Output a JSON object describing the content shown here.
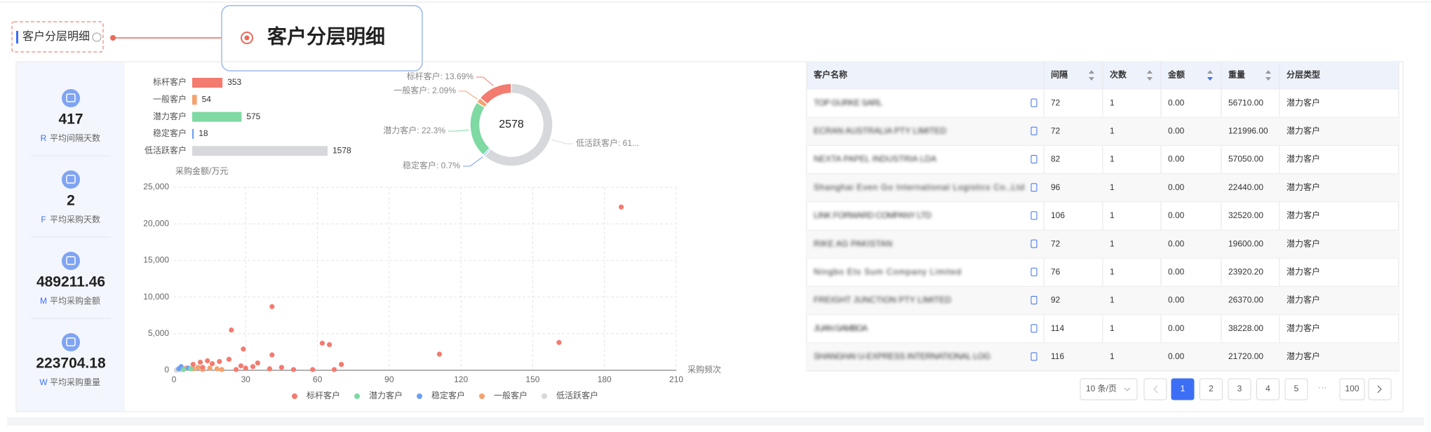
{
  "header": {
    "title": "客户分层明细",
    "callout": "客户分层明细"
  },
  "kpis": [
    {
      "value": 417,
      "letter": "R",
      "label": "平均间隔天数"
    },
    {
      "value": 2,
      "letter": "F",
      "label": "平均采购天数"
    },
    {
      "value": 489211.46,
      "letter": "M",
      "label": "平均采购金额"
    },
    {
      "value": 223704.18,
      "letter": "W",
      "label": "平均采购重量"
    }
  ],
  "bar_chart": {
    "type": "bar",
    "categories": [
      "标杆客户",
      "一般客户",
      "潜力客户",
      "稳定客户",
      "低活跃客户"
    ],
    "values": [
      353,
      54,
      575,
      18,
      1578
    ],
    "colors": [
      "#f37b6f",
      "#f4a26f",
      "#7ed9a3",
      "#6f9ff5",
      "#d6d8db"
    ]
  },
  "donut_chart": {
    "type": "pie",
    "total": 2578,
    "values": [
      13.69,
      2.09,
      22.3,
      0.7,
      61.21
    ],
    "value_labels": [
      "标杆客户: 13.69%",
      "一般客户: 2.09%",
      "潜力客户: 22.3%",
      "稳定客户: 0.7%",
      "低活跃客户: 61..."
    ],
    "colors": [
      "#f37b6f",
      "#f4a26f",
      "#7ed9a3",
      "#6f9ff5",
      "#d6d8db"
    ]
  },
  "scatter_chart": {
    "type": "scatter",
    "y_label": "采购金额/万元",
    "x_label": "采购频次",
    "xlim": [
      0,
      210
    ],
    "xticks": [
      0,
      30,
      60,
      90,
      120,
      150,
      180,
      210
    ],
    "ylim": [
      0,
      25000
    ],
    "yticks": [
      0,
      {
        "value": 5000,
        "label": "5,000"
      },
      {
        "value": 10000,
        "label": "10,000"
      },
      {
        "value": 15000,
        "label": "15,000"
      },
      {
        "value": 20000,
        "label": "20,000"
      },
      {
        "value": 25000,
        "label": "25,000"
      }
    ],
    "grid": true,
    "series": [
      {
        "name": "标杆客户",
        "color": "#f37b6f",
        "x": [
          187,
          161,
          111,
          41,
          24,
          62,
          65,
          29,
          41,
          23,
          19,
          35,
          14,
          11,
          28,
          45,
          50,
          70,
          67,
          58,
          40,
          30,
          8,
          16,
          12,
          26,
          33
        ],
        "y": [
          22300,
          3800,
          2200,
          8700,
          5500,
          3700,
          3500,
          2900,
          2100,
          1500,
          1200,
          1000,
          1300,
          1100,
          600,
          400,
          100,
          800,
          100,
          100,
          200,
          300,
          800,
          900,
          400,
          100,
          500
        ]
      },
      {
        "name": "潜力客户",
        "color": "#7ed9a3",
        "x": [
          4,
          7
        ],
        "y": [
          100,
          200
        ]
      },
      {
        "name": "稳定客户",
        "color": "#6f9ff5",
        "x": [
          3,
          6,
          2
        ],
        "y": [
          500,
          300,
          200
        ]
      },
      {
        "name": "一般客户",
        "color": "#f4a26f",
        "x": [
          5,
          8,
          10,
          12,
          15,
          18,
          20
        ],
        "y": [
          300,
          200,
          400,
          100,
          300,
          200,
          100
        ]
      },
      {
        "name": "低活跃客户",
        "color": "#d6d8db",
        "x": [
          1,
          2,
          3,
          1
        ],
        "y": [
          0,
          100,
          50,
          50
        ]
      }
    ]
  },
  "table": {
    "columns": [
      "客户名称",
      "间隔",
      "次数",
      "金额",
      "重量",
      "分层类型"
    ],
    "rows": [
      [
        "TOP GURKE SARL",
        "72",
        "1",
        "0.00",
        "56710.00",
        "潜力客户"
      ],
      [
        "ECRAN AUSTRALIA PTY LIMITED",
        "72",
        "1",
        "0.00",
        "121996.00",
        "潜力客户"
      ],
      [
        "NEXTA PAPEL INDUSTRIA LDA",
        "82",
        "1",
        "0.00",
        "57050.00",
        "潜力客户"
      ],
      [
        "Shanghai Even Go International Logistics Co.,Ltd",
        "96",
        "1",
        "0.00",
        "22440.00",
        "潜力客户"
      ],
      [
        "LINK FORWARD COMPANY LTD",
        "106",
        "1",
        "0.00",
        "32520.00",
        "潜力客户"
      ],
      [
        "RIKE AG PAKISTAN",
        "72",
        "1",
        "0.00",
        "19600.00",
        "潜力客户"
      ],
      [
        "Ningbo Ets Sum Company Limited",
        "76",
        "1",
        "0.00",
        "23920.20",
        "潜力客户"
      ],
      [
        "FREIGHT JUNCTION PTY LIMITED",
        "92",
        "1",
        "0.00",
        "26370.00",
        "潜力客户"
      ],
      [
        "JUAN GAMBOA",
        "114",
        "1",
        "0.00",
        "38228.00",
        "潜力客户"
      ],
      [
        "SHANGHAI U-EXPRESS INTERNATIONAL LOG",
        "116",
        "1",
        "0.00",
        "21720.00",
        "潜力客户"
      ]
    ]
  },
  "pagination": {
    "page_size": "10 条/页",
    "pages": [
      "1",
      "2",
      "3",
      "4",
      "5"
    ],
    "ellipsis": "···",
    "last": "100"
  }
}
